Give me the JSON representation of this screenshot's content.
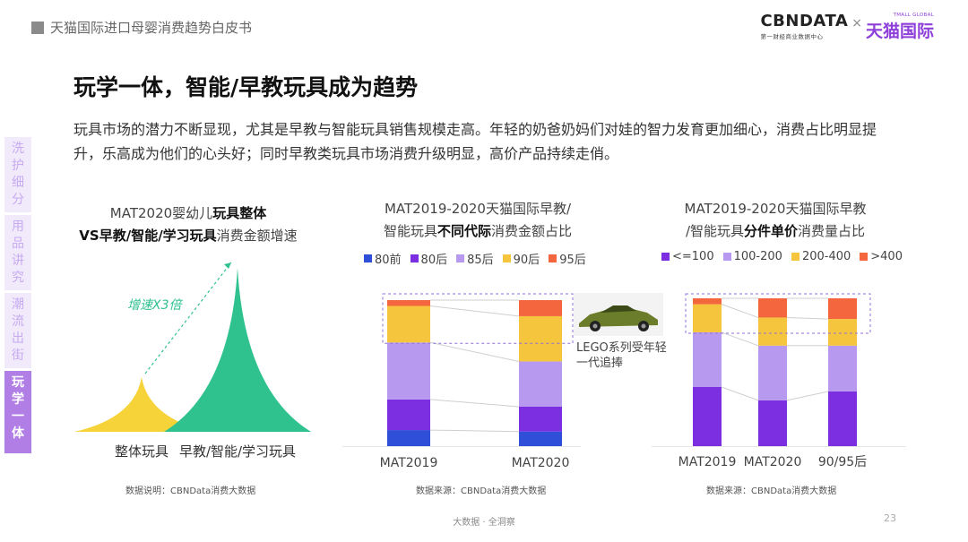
{
  "header": {
    "doc_title": "天猫国际进口母婴消费趋势白皮书",
    "logo_cbndata": "CBNDATA",
    "logo_cbndata_sub": "第一财经商业数据中心",
    "logo_times": "×",
    "logo_tmall": "天猫国际",
    "logo_tmall_global": "TMALL GLOBAL"
  },
  "nav": {
    "items": [
      {
        "label": "洗护细分",
        "active": false
      },
      {
        "label": "用品讲究",
        "active": false
      },
      {
        "label": "潮流出街",
        "active": false
      },
      {
        "label": "玩学一体",
        "active": true
      }
    ]
  },
  "heading": "玩学一体，智能/早教玩具成为趋势",
  "intro": "玩具市场的潜力不断显现，尤其是早教与智能玩具销售规模走高。年轻的奶爸奶妈们对娃的智力发育更加细心，消费占比明显提升，乐高成为他们的心头好；同时早教类玩具市场消费升级明显，高价产品持续走俏。",
  "charts": {
    "growth": {
      "title_line1_plain": "MAT2020婴幼儿",
      "title_line1_bold": "玩具整体",
      "title_line2_bold": "VS早教/智能/学习玩具",
      "title_line2_plain": "消费金额增速",
      "annotation": "增速X3倍",
      "source": "数据说明：CBNData消费大数据"
    },
    "generation": {
      "title_line1": "MAT2019-2020天猫国际早教/",
      "title_line2_plain1": "智能玩具",
      "title_line2_bold": "不同代际",
      "title_line2_plain2": "消费金额占比",
      "callout": "LEGO系列受年轻一代追捧",
      "source": "数据来源：CBNData消费大数据"
    },
    "price": {
      "title_line1": "MAT2019-2020天猫国际早教",
      "title_line2_plain1": "/智能玩具",
      "title_line2_bold": "分件单价",
      "title_line2_plain2": "消费量占比",
      "source": "数据来源：CBNData消费大数据"
    }
  },
  "chart_data": [
    {
      "type": "area",
      "title": "MAT2020婴幼儿玩具整体VS早教/智能/学习玩具消费金额增速",
      "categories": [
        "整体玩具",
        "早教/智能/学习玩具"
      ],
      "values": [
        1,
        3
      ],
      "colors": [
        "#f7d33a",
        "#2fc28f"
      ],
      "annotation": "增速X3倍"
    },
    {
      "type": "bar",
      "stacked": true,
      "percent": true,
      "title": "MAT2019-2020天猫国际早教/智能玩具不同代际消费金额占比",
      "categories": [
        "MAT2019",
        "MAT2020"
      ],
      "series": [
        {
          "name": "80前",
          "color": "#2f4fd9",
          "values": [
            11,
            10
          ]
        },
        {
          "name": "80后",
          "color": "#7b2fe0",
          "values": [
            21,
            17
          ]
        },
        {
          "name": "85后",
          "color": "#b79af0",
          "values": [
            39,
            31
          ]
        },
        {
          "name": "90后",
          "color": "#f5c53d",
          "values": [
            25,
            31
          ]
        },
        {
          "name": "95后",
          "color": "#f4663d",
          "values": [
            4,
            11
          ]
        }
      ],
      "ylim": [
        0,
        100
      ]
    },
    {
      "type": "bar",
      "stacked": true,
      "percent": true,
      "title": "MAT2019-2020天猫国际早教/智能玩具分件单价消费量占比",
      "categories": [
        "MAT2019",
        "MAT2020",
        "90/95后"
      ],
      "series": [
        {
          "name": "<=100",
          "color": "#7b2fe0",
          "values": [
            40,
            31,
            37
          ]
        },
        {
          "name": "100-200",
          "color": "#b79af0",
          "values": [
            37,
            37,
            31
          ]
        },
        {
          "name": "200-400",
          "color": "#f5c53d",
          "values": [
            19,
            19,
            18
          ]
        },
        {
          "name": ">400",
          "color": "#f4663d",
          "values": [
            4,
            13,
            14
          ]
        }
      ],
      "ylim": [
        0,
        100
      ]
    }
  ],
  "footer": {
    "center": "大数据 · 全洞察",
    "page_number": "23"
  }
}
